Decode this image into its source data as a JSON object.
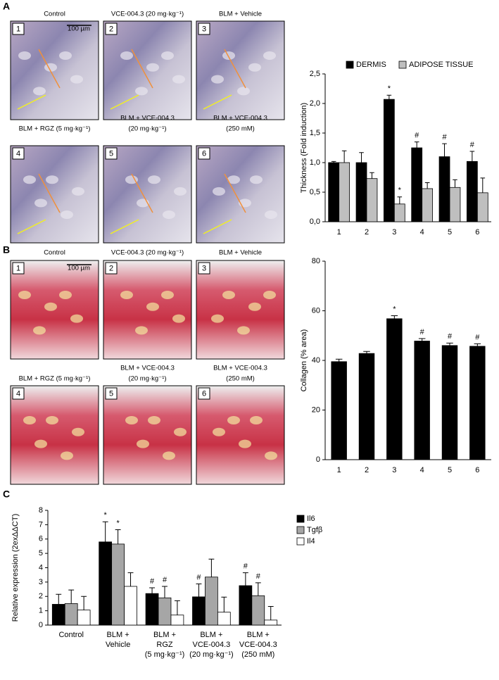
{
  "panels": [
    {
      "label": "A",
      "scale_bar": "100 µm",
      "images": [
        {
          "number": "1",
          "caption": [
            "Control"
          ]
        },
        {
          "number": "2",
          "caption": [
            "VCE-004.3 (20 mg·kg⁻¹)"
          ]
        },
        {
          "number": "3",
          "caption": [
            "BLM + Vehicle"
          ]
        },
        {
          "number": "4",
          "caption": [
            "BLM + RGZ (5 mg·kg⁻¹)"
          ]
        },
        {
          "number": "5",
          "caption": [
            "BLM + VCE-004.3",
            "(20 mg·kg⁻¹)"
          ]
        },
        {
          "number": "6",
          "caption": [
            "BLM + VCE-004.3",
            "(250 mM)"
          ]
        }
      ]
    },
    {
      "label": "B",
      "scale_bar": "100 µm",
      "images": [
        {
          "number": "1",
          "caption": [
            "Control"
          ]
        },
        {
          "number": "2",
          "caption": [
            "VCE-004.3 (20 mg·kg⁻¹)"
          ]
        },
        {
          "number": "3",
          "caption": [
            "BLM + Vehicle"
          ]
        },
        {
          "number": "4",
          "caption": [
            "BLM + RGZ (5 mg·kg⁻¹)"
          ]
        },
        {
          "number": "5",
          "caption": [
            "BLM + VCE-004.3",
            "(20 mg·kg⁻¹)"
          ]
        },
        {
          "number": "6",
          "caption": [
            "BLM + VCE-004.3",
            "(250 mM)"
          ]
        }
      ]
    },
    {
      "label": "C"
    }
  ],
  "chart_data": [
    {
      "type": "bar",
      "ylabel": "Thickness (Fold induction)",
      "categories": [
        "1",
        "2",
        "3",
        "4",
        "5",
        "6"
      ],
      "series": [
        {
          "name": "DERMIS",
          "color": "#000000",
          "values": [
            1.0,
            1.0,
            2.07,
            1.25,
            1.1,
            1.02
          ],
          "errors": [
            0.02,
            0.17,
            0.07,
            0.1,
            0.22,
            0.17
          ],
          "markers": [
            null,
            null,
            "*",
            "#",
            "#",
            "#"
          ]
        },
        {
          "name": "ADIPOSE TISSUE",
          "color": "#bfbfbf",
          "values": [
            1.0,
            0.73,
            0.3,
            0.56,
            0.58,
            0.49
          ],
          "errors": [
            0.2,
            0.1,
            0.12,
            0.1,
            0.13,
            0.25
          ],
          "markers": [
            null,
            null,
            "*",
            null,
            null,
            null
          ]
        }
      ],
      "ylim": [
        0,
        2.5
      ],
      "yticks": [
        {
          "value": 0,
          "label": "0,0"
        },
        {
          "value": 0.5,
          "label": "0,5"
        },
        {
          "value": 1,
          "label": "1,0"
        },
        {
          "value": 1.5,
          "label": "1,5"
        },
        {
          "value": 2,
          "label": "2,0"
        },
        {
          "value": 2.5,
          "label": "2,5"
        }
      ],
      "legend": "top"
    },
    {
      "type": "bar",
      "ylabel": "Collagen (% area)",
      "categories": [
        "1",
        "2",
        "3",
        "4",
        "5",
        "6"
      ],
      "series": [
        {
          "name": null,
          "color": "#000000",
          "values": [
            39.5,
            42.8,
            56.8,
            47.8,
            46,
            45.7
          ],
          "errors": [
            1,
            0.8,
            1.2,
            1,
            1,
            1
          ],
          "markers": [
            null,
            null,
            "*",
            "#",
            "#",
            "#"
          ]
        }
      ],
      "ylim": [
        0,
        80
      ],
      "yticks": [
        0,
        20,
        40,
        60,
        80
      ]
    },
    {
      "type": "bar",
      "ylabel": "Relative expression (2exΔΔCT)",
      "categories": [
        [
          "Control"
        ],
        [
          "BLM +",
          "Vehicle"
        ],
        [
          "BLM +",
          "RGZ",
          "(5 mg·kg⁻¹)"
        ],
        [
          "BLM +",
          "VCE-004.3",
          "(20 mg·kg⁻¹)"
        ],
        [
          "BLM +",
          "VCE-004.3",
          "(250 mM)"
        ]
      ],
      "series": [
        {
          "name": "Il6",
          "color": "#000000",
          "values": [
            1.45,
            5.8,
            2.2,
            1.97,
            2.75
          ],
          "errors": [
            0.7,
            1.4,
            0.4,
            0.9,
            0.9
          ],
          "markers": [
            null,
            "*",
            "#",
            "#",
            "#"
          ]
        },
        {
          "name": "Tgfβ",
          "color": "#a6a6a6",
          "values": [
            1.5,
            5.65,
            1.9,
            3.35,
            2.05
          ],
          "errors": [
            0.95,
            1.0,
            0.8,
            1.25,
            0.9
          ],
          "markers": [
            null,
            "*",
            "#",
            null,
            "#"
          ]
        },
        {
          "name": "Il4",
          "color": "#ffffff",
          "values": [
            1.05,
            2.7,
            0.7,
            0.9,
            0.35
          ],
          "errors": [
            0.95,
            0.95,
            1.0,
            1.05,
            0.95
          ],
          "markers": [
            null,
            null,
            null,
            null,
            null
          ]
        }
      ],
      "ylim": [
        0,
        8
      ],
      "yticks": [
        0,
        1,
        2,
        3,
        4,
        5,
        6,
        7,
        8
      ],
      "legend": "right"
    }
  ]
}
